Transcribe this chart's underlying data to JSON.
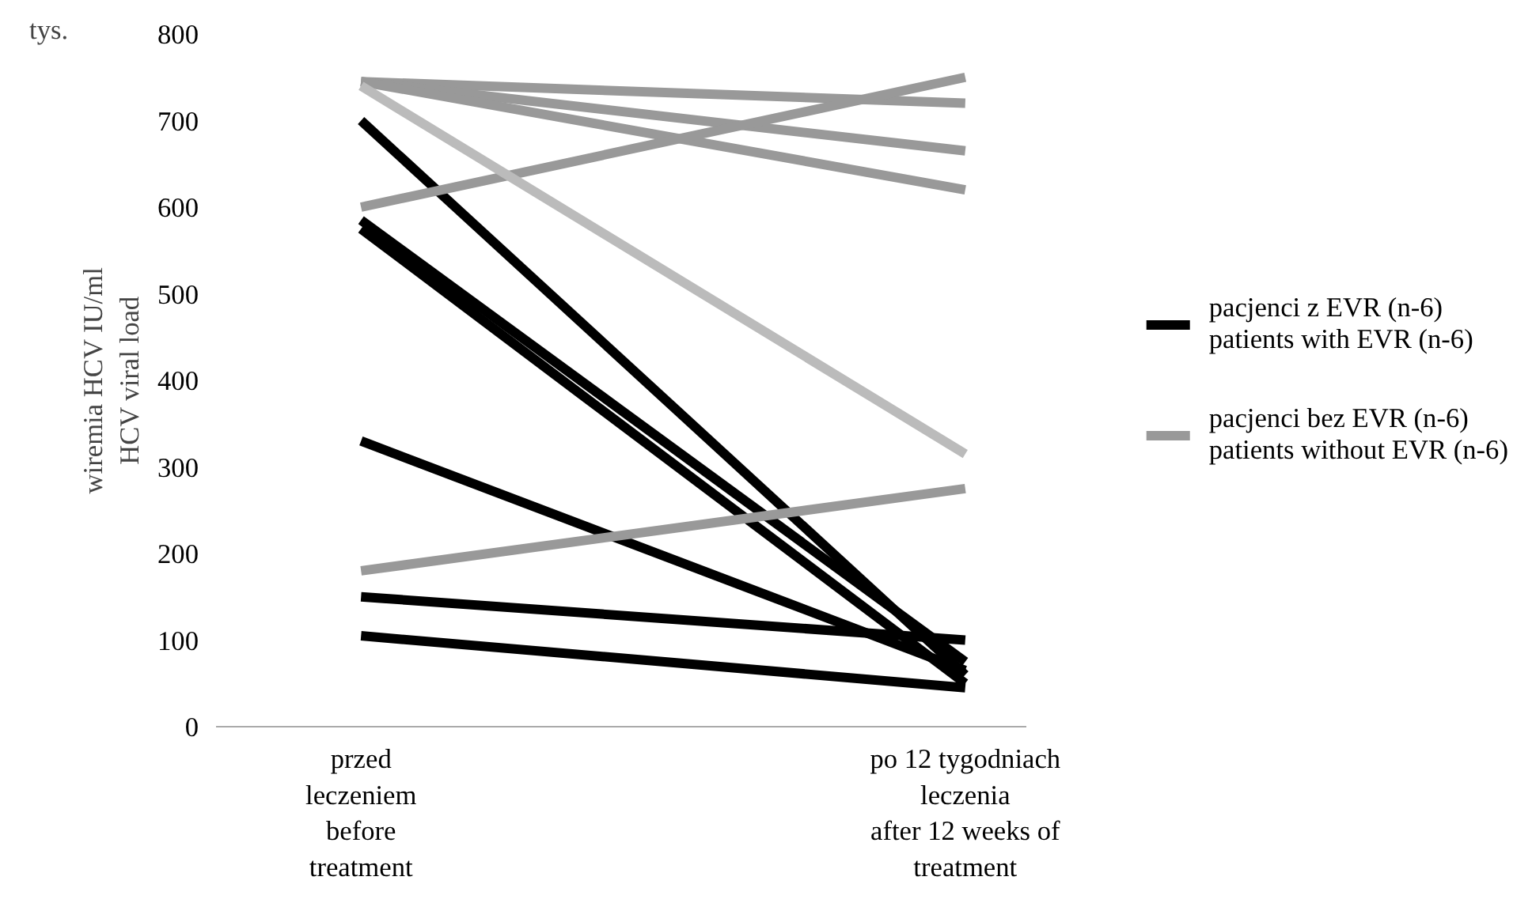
{
  "chart_data": {
    "type": "line",
    "ylabel": "wiremia HCV IU/ml\nHCV viral load",
    "annotations": [
      "tys."
    ],
    "categories": [
      "przed\nleczeniem\nbefore\ntreatment",
      "po 12 tygodniach\nleczenia\nafter 12 weeks of\ntreatment"
    ],
    "ylim": [
      0,
      800
    ],
    "yticks": [
      0,
      100,
      200,
      300,
      400,
      500,
      600,
      700,
      800
    ],
    "grid": false,
    "legend": "right",
    "marker": "none",
    "line_style": "solid",
    "series": [
      {
        "name": "pacjenci z EVR (n-6)\npatients with EVR (n-6)",
        "color": "#000000",
        "values": [
          700,
          60
        ]
      },
      {
        "color": "#000000",
        "values": [
          585,
          75
        ]
      },
      {
        "color": "#000000",
        "values": [
          575,
          50
        ]
      },
      {
        "color": "#000000",
        "values": [
          330,
          65
        ]
      },
      {
        "color": "#000000",
        "values": [
          150,
          100
        ]
      },
      {
        "color": "#000000",
        "values": [
          105,
          45
        ]
      },
      {
        "name": "pacjenci bez EVR (n-6)\npatients without EVR (n-6)",
        "color": "#999999",
        "values": [
          745,
          720
        ]
      },
      {
        "color": "#999999",
        "values": [
          745,
          665
        ]
      },
      {
        "color": "#999999",
        "values": [
          745,
          620
        ]
      },
      {
        "color": "#999999",
        "values": [
          600,
          750
        ]
      },
      {
        "color": "#bbbbbb",
        "values": [
          740,
          315
        ]
      },
      {
        "color": "#999999",
        "values": [
          180,
          275
        ]
      }
    ]
  }
}
